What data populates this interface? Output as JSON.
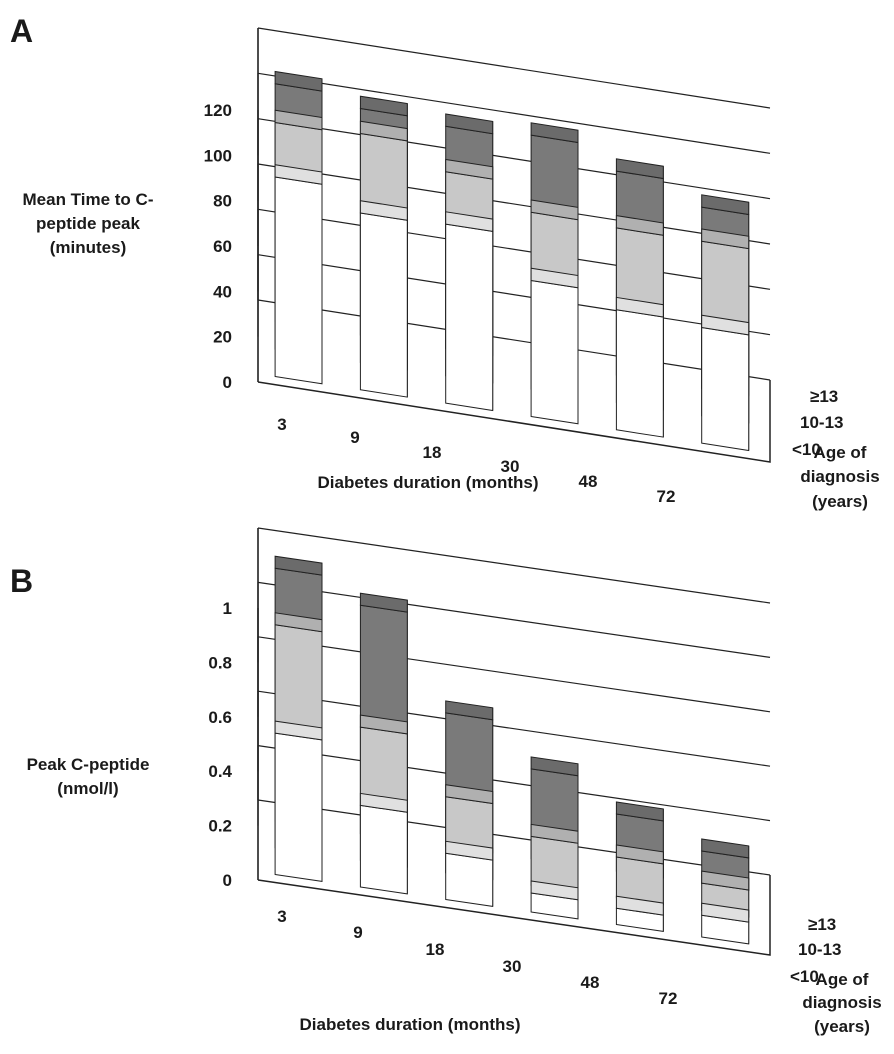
{
  "chart_data": [
    {
      "panel": "A",
      "type": "bar",
      "categories": [
        "3",
        "9",
        "18",
        "30",
        "48",
        "72"
      ],
      "ylabel": [
        "Mean Time to C-",
        "peptide peak",
        "(minutes)"
      ],
      "xlabel": "Diabetes duration (months)",
      "zlabel": [
        "Age of",
        "diagnosis",
        "(years)"
      ],
      "yticks": [
        "0",
        "20",
        "40",
        "60",
        "80",
        "100",
        "120"
      ],
      "ylim": [
        0,
        120
      ],
      "series": [
        {
          "name": "<10",
          "values": [
            88,
            78,
            79,
            60,
            53,
            51
          ],
          "color": "#ffffff"
        },
        {
          "name": "10-13",
          "values": [
            100,
            101,
            90,
            78,
            77,
            77
          ],
          "color": "#c8c8c8"
        },
        {
          "name": "≥13",
          "values": [
            105,
            100,
            98,
            100,
            90,
            80
          ],
          "color": "#7a7a7a"
        }
      ]
    },
    {
      "panel": "B",
      "type": "bar",
      "categories": [
        "3",
        "9",
        "18",
        "30",
        "48",
        "72"
      ],
      "ylabel": [
        "Peak C-peptide",
        "(nmol/l)"
      ],
      "xlabel": "Diabetes duration (months)",
      "zlabel": [
        "Age of",
        "diagnosis",
        "(years)"
      ],
      "yticks": [
        "0",
        "0.2",
        "0.4",
        "0.6",
        "0.8",
        "1"
      ],
      "ylim": [
        0,
        1
      ],
      "series": [
        {
          "name": "<10",
          "values": [
            0.52,
            0.3,
            0.17,
            0.07,
            0.06,
            0.08
          ],
          "color": "#ffffff"
        },
        {
          "name": "10-13",
          "values": [
            0.82,
            0.49,
            0.28,
            0.18,
            0.15,
            0.1
          ],
          "color": "#c8c8c8"
        },
        {
          "name": "≥13",
          "values": [
            0.93,
            0.84,
            0.49,
            0.33,
            0.21,
            0.12
          ],
          "color": "#7a7a7a"
        }
      ]
    }
  ]
}
